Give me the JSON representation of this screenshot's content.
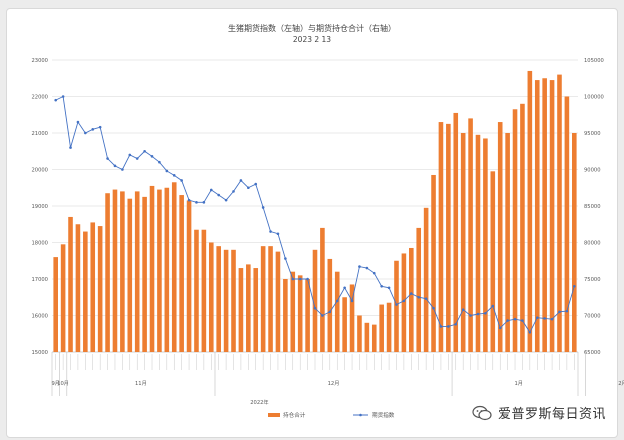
{
  "chart_data": {
    "type": "bar",
    "title": "生猪期货指数（左轴）与期货持仓合计（右轴）",
    "subtitle": "2023 2 13",
    "left_axis": {
      "min": 15000,
      "max": 23000,
      "step": 1000,
      "ticks": [
        "15000",
        "16000",
        "17000",
        "18000",
        "19000",
        "20000",
        "21000",
        "22000",
        "23000"
      ]
    },
    "right_axis": {
      "min": 65000,
      "max": 105000,
      "step": 5000,
      "ticks": [
        "65000",
        "70000",
        "75000",
        "80000",
        "85000",
        "90000",
        "95000",
        "100000",
        "105000"
      ]
    },
    "grid": true,
    "legend_position": "bottom",
    "group_labels": [
      {
        "label": "9月",
        "start": 0,
        "end": 0
      },
      {
        "label": "10月",
        "start": 1,
        "end": 1
      },
      {
        "label": "11月",
        "start": 2,
        "end": 21
      },
      {
        "label": "12月",
        "start": 22,
        "end": 53
      },
      {
        "label": "1月",
        "start": 54,
        "end": 71
      },
      {
        "label": "2月",
        "start": 72,
        "end": 81
      }
    ],
    "year_label": "2022年",
    "series": [
      {
        "name": "持仓合计",
        "type": "bar",
        "axis": "left",
        "color": "#ed7d31",
        "values": [
          17600,
          17950,
          18700,
          18500,
          18300,
          18550,
          18450,
          19350,
          19450,
          19400,
          19200,
          19400,
          19250,
          19550,
          19450,
          19500,
          19650,
          19300,
          19150,
          18350,
          18350,
          18000,
          17900,
          17800,
          17800,
          17300,
          17400,
          17300,
          17900,
          17900,
          17750,
          17000,
          17200,
          17100,
          17000,
          17800,
          18400,
          17550,
          17200,
          16500,
          16850,
          16000,
          15800,
          15750,
          16300,
          16350,
          17500,
          17700,
          17850,
          18400,
          18950,
          19850,
          21300,
          21250,
          21550,
          21000,
          21400,
          20950,
          20850,
          19950,
          21300,
          21000,
          21650,
          21800,
          22700,
          22450,
          22500,
          22450,
          22600,
          22000,
          21000
        ]
      },
      {
        "name": "期货指数",
        "type": "line",
        "axis": "right",
        "color": "#4472c4",
        "values": [
          99500,
          100000,
          93000,
          96500,
          95000,
          95500,
          95800,
          91500,
          90500,
          90000,
          92000,
          91500,
          92500,
          91800,
          91000,
          89800,
          89200,
          88500,
          85800,
          85500,
          85500,
          87200,
          86500,
          85800,
          87000,
          88500,
          87500,
          88000,
          84800,
          81500,
          81200,
          77800,
          75000,
          75000,
          75000,
          71000,
          70000,
          70500,
          72000,
          73800,
          72000,
          76700,
          76500,
          75800,
          74000,
          73800,
          71500,
          72000,
          73000,
          72500,
          72300,
          71000,
          68500,
          68500,
          68800,
          70800,
          70000,
          70200,
          70300,
          71300,
          68300,
          69300,
          69500,
          69300,
          67700,
          69700,
          69600,
          69500,
          70500,
          70600,
          74000
        ]
      }
    ]
  }
}
